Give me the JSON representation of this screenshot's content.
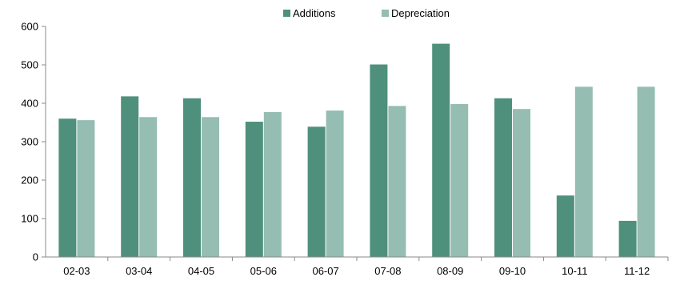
{
  "chart_data": {
    "type": "bar",
    "categories": [
      "02-03",
      "03-04",
      "04-05",
      "05-06",
      "06-07",
      "07-08",
      "08-09",
      "09-10",
      "10-11",
      "11-12"
    ],
    "series": [
      {
        "name": "Additions",
        "color": "#4f907c",
        "values": [
          360,
          418,
          413,
          352,
          339,
          501,
          555,
          413,
          160,
          94
        ]
      },
      {
        "name": "Depreciation",
        "color": "#95bdb1",
        "values": [
          356,
          364,
          364,
          377,
          381,
          393,
          398,
          385,
          443,
          443
        ]
      }
    ],
    "title": "",
    "xlabel": "",
    "ylabel": "",
    "ylim": [
      0,
      600
    ],
    "yticks": [
      0,
      100,
      200,
      300,
      400,
      500,
      600
    ],
    "grid": false,
    "legend_position": "top-center"
  }
}
